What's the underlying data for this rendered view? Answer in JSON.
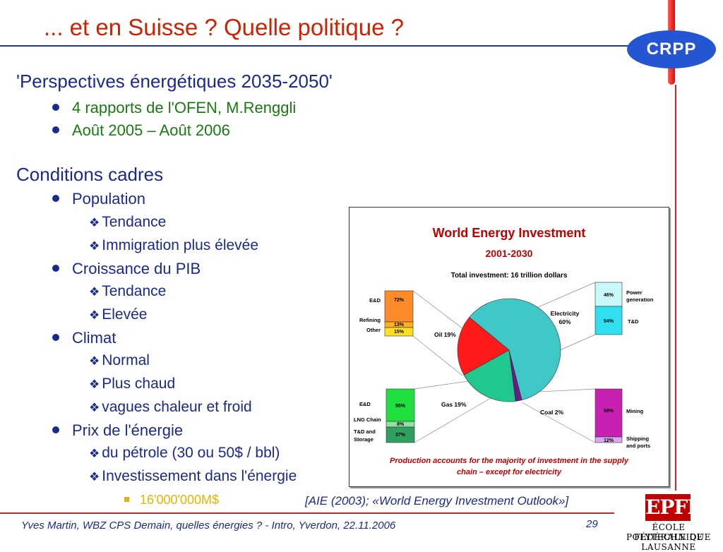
{
  "slide": {
    "title": "... et en Suisse ? Quelle politique ?",
    "logo_text": "CRPP",
    "section1": {
      "heading": "'Perspectives énergétiques 2035-2050'",
      "bullets": [
        "4 rapports de l'OFEN, M.Renggli",
        "Août 2005 – Août 2006"
      ]
    },
    "section2": {
      "heading": "Conditions cadres",
      "items": [
        {
          "label": "Population",
          "sub": [
            "Tendance",
            "Immigration plus élevée"
          ]
        },
        {
          "label": "Croissance du PIB",
          "sub": [
            "Tendance",
            "Elevée"
          ]
        },
        {
          "label": "Climat",
          "sub": [
            "Normal",
            "Plus chaud",
            "vagues chaleur et froid"
          ]
        },
        {
          "label": "Prix de l'énergie",
          "sub": [
            "du pétrole (30 ou 50$ / bbl)",
            "Investissement dans l'énergie"
          ]
        }
      ],
      "subsub": "16'000'000M$"
    },
    "citation": "[AIE (2003); «World Energy Investment Outlook»]",
    "footer": "Yves Martin, WBZ CPS Demain, quelles énergies ? - Intro, Yverdon, 22.11.2006",
    "page_number": "29",
    "epfl": {
      "mark": "EPFL",
      "line1": "ÉCOLE POLYTECHNIQUE",
      "line2": "FÉDÉRALE DE LAUSANNE"
    }
  },
  "colors": {
    "title_red": "#cc2200",
    "text_blue": "#1a2a8c",
    "green": "#1a7a12",
    "accent_yellow": "#e8b300"
  },
  "chart_data": {
    "type": "pie",
    "title": "World Energy Investment",
    "subtitle": "2001-2030",
    "total_label": "Total investment: 16 trillion dollars",
    "slices": [
      {
        "name": "Electricity 60%",
        "value": 60,
        "color": "#40c8c8"
      },
      {
        "name": "Coal 2%",
        "value": 2,
        "color": "#6a1a8a"
      },
      {
        "name": "Gas 19%",
        "value": 19,
        "color": "#20c890"
      },
      {
        "name": "Oil 19%",
        "value": 19,
        "color": "#ff1a1a"
      }
    ],
    "breakdowns": [
      {
        "name": "Oil",
        "segments": [
          {
            "label": "E&D",
            "value": "72%",
            "color": "#ff8a2a"
          },
          {
            "label": "Refining",
            "value": "13%",
            "color": "#ffb020"
          },
          {
            "label": "Other",
            "value": "15%",
            "color": "#ffe020"
          }
        ]
      },
      {
        "name": "Electricity",
        "segments": [
          {
            "label": "Power generation",
            "value": "46%",
            "color": "#c8f8f8"
          },
          {
            "label": "T&D",
            "value": "54%",
            "color": "#30e0f0"
          }
        ]
      },
      {
        "name": "Gas",
        "segments": [
          {
            "label": "E&D",
            "value": "55%",
            "color": "#20e040"
          },
          {
            "label": "LNG Chain",
            "value": "8%",
            "color": "#90e0a0"
          },
          {
            "label": "T&D and Storage",
            "value": "37%",
            "color": "#30a060"
          }
        ]
      },
      {
        "name": "Coal",
        "segments": [
          {
            "label": "Mining",
            "value": "88%",
            "color": "#c820b0"
          },
          {
            "label": "Shipping and ports",
            "value": "12%",
            "color": "#d8a8f0"
          }
        ]
      }
    ],
    "note": "Production accounts for the majority of investment in the supply chain – except for electricity"
  }
}
